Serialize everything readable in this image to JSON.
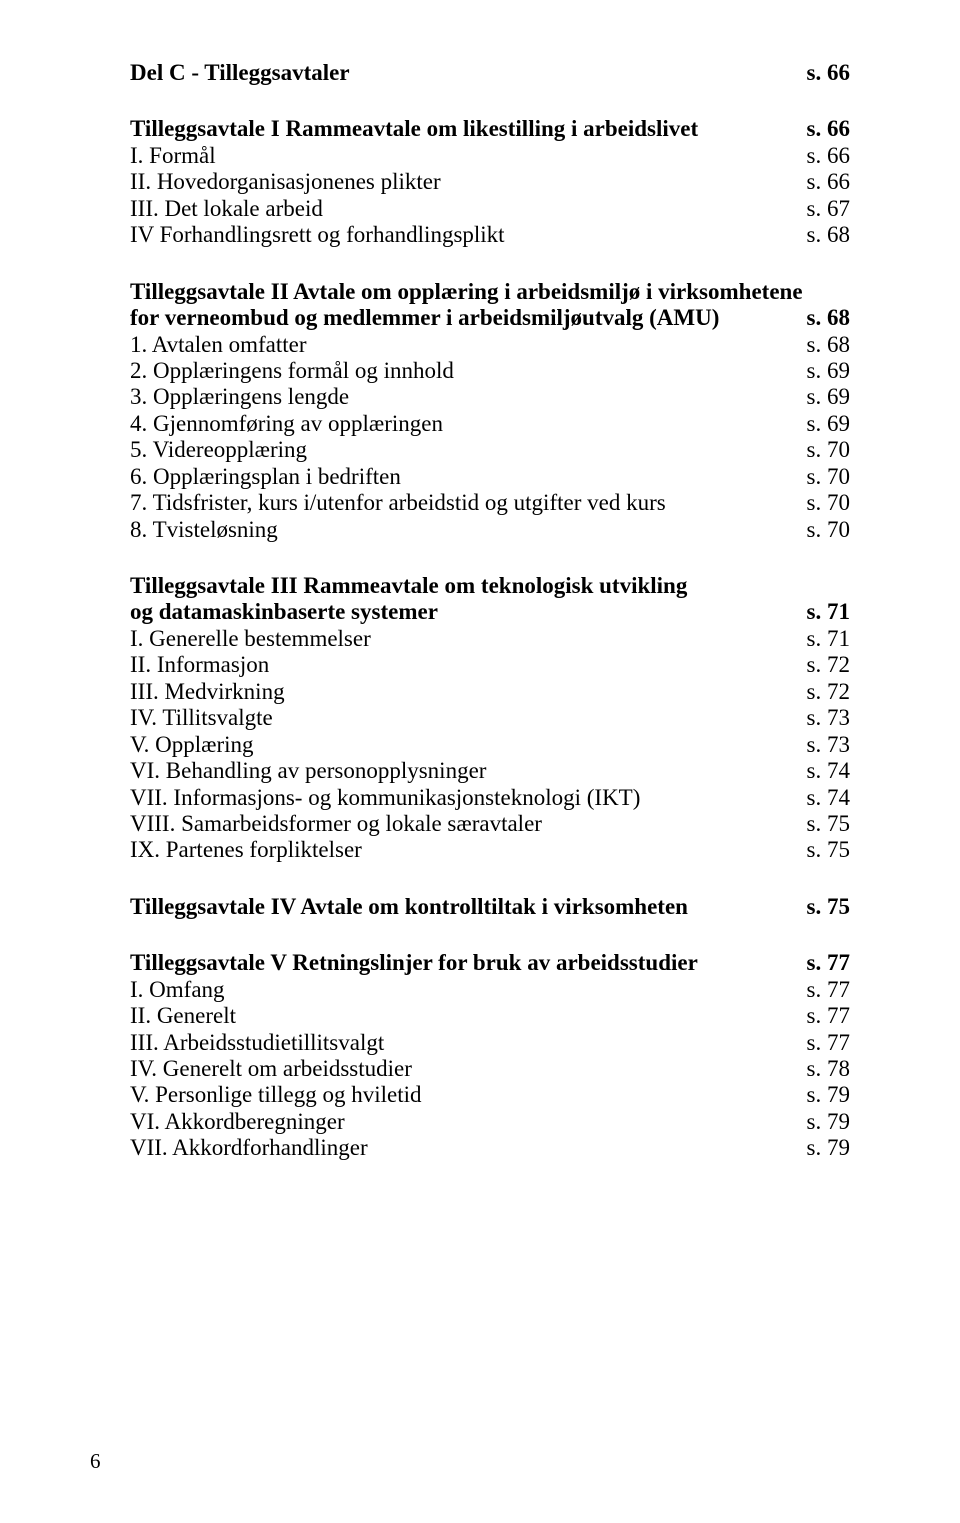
{
  "sectionC": {
    "title": "Del C - Tilleggsavtaler",
    "page": "s.  66"
  },
  "t1": {
    "heading": "Tilleggsavtale I Rammeavtale om likestilling i arbeidslivet",
    "page": "s.  66",
    "rows": [
      {
        "label": "I. Formål",
        "page": "s.  66"
      },
      {
        "label": "II. Hovedorganisasjonenes plikter",
        "page": "s.  66"
      },
      {
        "label": "III. Det lokale arbeid",
        "page": "s.  67"
      },
      {
        "label": "IV Forhandlingsrett og forhandlingsplikt",
        "page": "s.  68"
      }
    ]
  },
  "t2": {
    "heading_line1": "Tilleggsavtale II Avtale om opplæring i arbeidsmiljø i virksomhetene",
    "heading_line2": "for verneombud og medlemmer i arbeidsmiljøutvalg (AMU)",
    "page": "s.  68",
    "rows": [
      {
        "label": "1. Avtalen omfatter",
        "page": "s.  68"
      },
      {
        "label": "2. Opplæringens formål og innhold",
        "page": "s.  69"
      },
      {
        "label": "3. Opplæringens lengde",
        "page": "s.  69"
      },
      {
        "label": "4. Gjennomføring av opplæringen",
        "page": "s.  69"
      },
      {
        "label": "5. Videreopplæring",
        "page": "s.  70"
      },
      {
        "label": "6. Opplæringsplan i bedriften",
        "page": "s.  70"
      },
      {
        "label": "7. Tidsfrister, kurs i/utenfor arbeidstid og utgifter ved kurs",
        "page": "s.  70"
      },
      {
        "label": "8. Tvisteløsning",
        "page": "s.  70"
      }
    ]
  },
  "t3": {
    "heading_line1": "Tilleggsavtale III Rammeavtale om teknologisk utvikling",
    "heading_line2": "og datamaskinbaserte systemer",
    "page": "s.  71",
    "rows": [
      {
        "label": "I. Generelle bestemmelser",
        "page": "s.  71"
      },
      {
        "label": "II. Informasjon",
        "page": "s.  72"
      },
      {
        "label": "III. Medvirkning",
        "page": "s.  72"
      },
      {
        "label": "IV. Tillitsvalgte",
        "page": "s.  73"
      },
      {
        "label": "V. Opplæring",
        "page": "s.  73"
      },
      {
        "label": "VI. Behandling av personopplysninger",
        "page": "s.  74"
      },
      {
        "label": "VII. Informasjons- og kommunikasjonsteknologi (IKT)",
        "page": "s.  74"
      },
      {
        "label": "VIII. Samarbeidsformer og lokale særavtaler",
        "page": "s.  75"
      },
      {
        "label": "IX. Partenes forpliktelser",
        "page": "s.  75"
      }
    ]
  },
  "t4": {
    "heading": "Tilleggsavtale IV Avtale om kontrolltiltak i virksomheten",
    "page": "s.  75"
  },
  "t5": {
    "heading": "Tilleggsavtale V Retningslinjer for bruk av arbeidsstudier",
    "page": "s.  77",
    "rows": [
      {
        "label": "I. Omfang",
        "page": "s.  77"
      },
      {
        "label": "II. Generelt",
        "page": "s.  77"
      },
      {
        "label": "III. Arbeidsstudietillitsvalgt",
        "page": "s.  77"
      },
      {
        "label": "IV. Generelt om arbeidsstudier",
        "page": "s.  78"
      },
      {
        "label": "V. Personlige tillegg og hviletid",
        "page": "s.  79"
      },
      {
        "label": "VI. Akkordberegninger",
        "page": "s.  79"
      },
      {
        "label": "VII. Akkordforhandlinger",
        "page": "s.  79"
      }
    ]
  },
  "pageNumber": "6"
}
